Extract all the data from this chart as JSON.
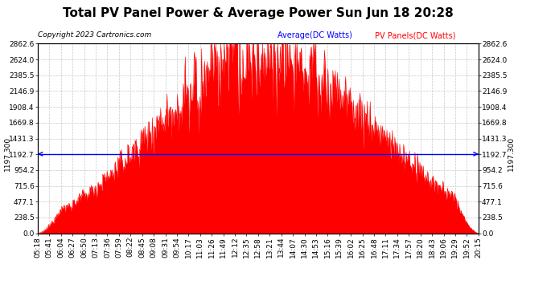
{
  "title": "Total PV Panel Power & Average Power Sun Jun 18 20:28",
  "copyright": "Copyright 2023 Cartronics.com",
  "average_value": 1197.3,
  "average_label": "1197.300",
  "y_max": 2862.6,
  "y_min": 0.0,
  "ytick_values": [
    0.0,
    238.5,
    477.1,
    715.6,
    954.2,
    1192.7,
    1431.3,
    1669.8,
    1908.4,
    2146.9,
    2385.5,
    2624.0,
    2862.6
  ],
  "fill_color": "#ff0000",
  "average_line_color": "#0000ff",
  "background_color": "#ffffff",
  "grid_color": "#c8c8c8",
  "legend_average_label": "Average(DC Watts)",
  "legend_pv_label": "PV Panels(DC Watts)",
  "x_tick_labels": [
    "05:18",
    "05:41",
    "06:04",
    "06:27",
    "06:50",
    "07:13",
    "07:36",
    "07:59",
    "08:22",
    "08:45",
    "09:08",
    "09:31",
    "09:54",
    "10:17",
    "11:03",
    "11:26",
    "11:49",
    "12:12",
    "12:35",
    "12:58",
    "13:21",
    "13:44",
    "14:07",
    "14:30",
    "14:53",
    "15:16",
    "15:39",
    "16:02",
    "16:25",
    "16:48",
    "17:11",
    "17:34",
    "17:57",
    "18:20",
    "18:43",
    "19:06",
    "19:29",
    "19:52",
    "20:15"
  ],
  "title_fontsize": 11,
  "tick_fontsize": 6.5
}
